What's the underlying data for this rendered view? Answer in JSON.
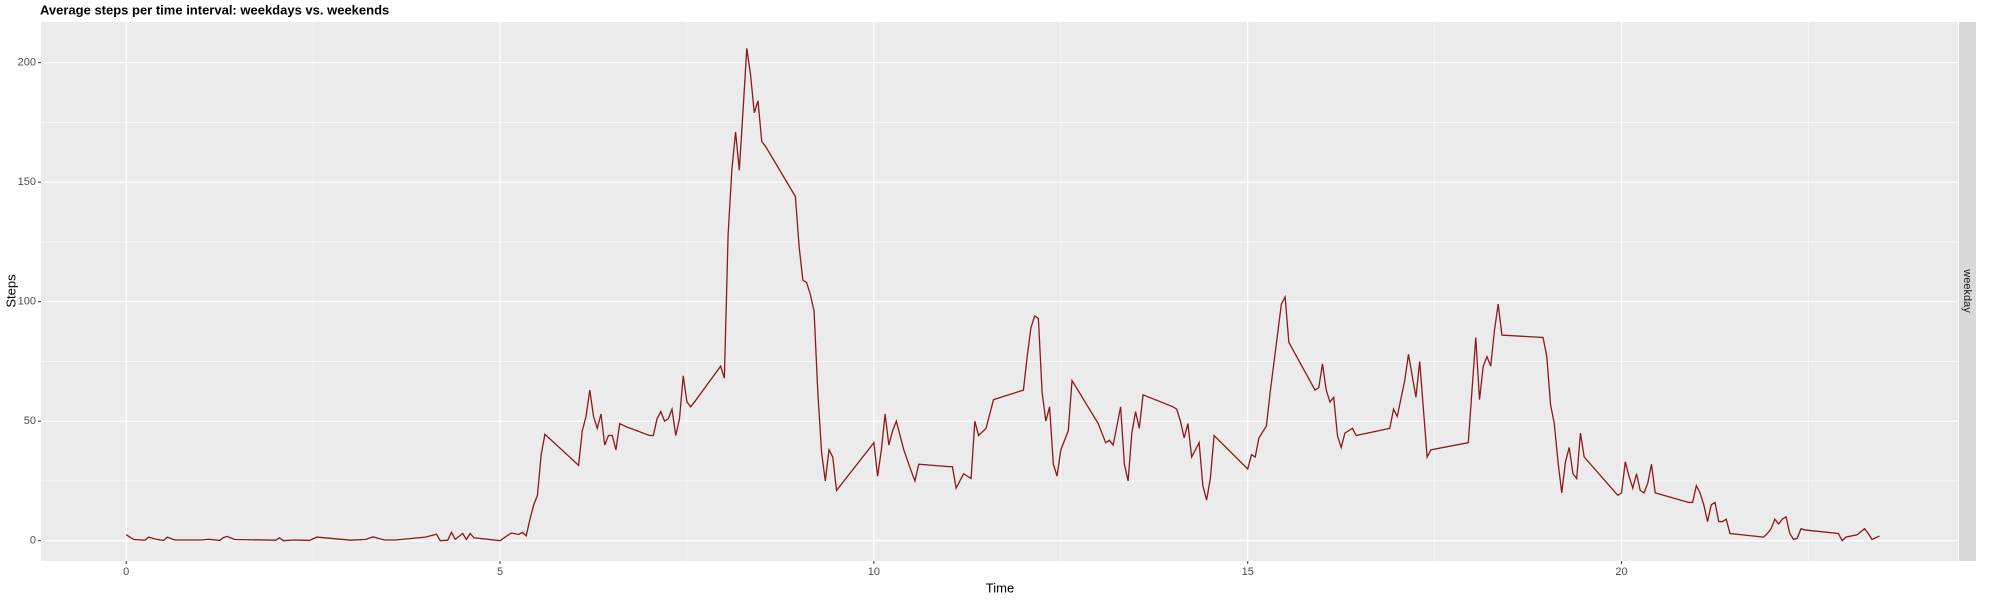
{
  "chart_data": {
    "type": "line",
    "title": "Average steps per time interval: weekdays vs. weekends",
    "x_label": "Time",
    "y_label": "Steps",
    "facet_label": "weekday",
    "color": "#8b1a1a",
    "xlim": [
      -1.14,
      24.5
    ],
    "ylim": [
      -8.5,
      217
    ],
    "xticks": [
      0,
      5,
      10,
      15,
      20
    ],
    "yticks": [
      0,
      50,
      100,
      150,
      200
    ],
    "x_minor_ticks": [
      2.5,
      7.5,
      12.5,
      17.5,
      22.5
    ],
    "y_minor_ticks": [
      25,
      75,
      125,
      175
    ],
    "grid": true,
    "x": [
      0,
      0.1,
      0.25,
      0.3,
      0.4,
      0.5,
      0.55,
      0.65,
      1.0,
      1.1,
      1.25,
      1.3,
      1.35,
      1.45,
      2.0,
      2.05,
      2.1,
      2.25,
      2.35,
      2.45,
      2.55,
      3.0,
      3.2,
      3.3,
      3.45,
      3.6,
      4.0,
      4.15,
      4.2,
      4.3,
      4.35,
      4.4,
      4.45,
      4.5,
      4.55,
      4.6,
      4.65,
      5.0,
      5.1,
      5.15,
      5.25,
      5.3,
      5.35,
      5.4,
      5.45,
      5.5,
      5.55,
      5.6,
      6.0,
      6.05,
      6.1,
      6.15,
      6.2,
      6.25,
      6.3,
      6.35,
      6.4,
      6.45,
      6.5,
      6.55,
      6.6,
      6.7,
      7.0,
      7.05,
      7.1,
      7.15,
      7.2,
      7.25,
      7.3,
      7.35,
      7.4,
      7.45,
      7.5,
      7.55,
      7.6,
      7.95,
      8.0,
      8.05,
      8.1,
      8.15,
      8.2,
      8.25,
      8.3,
      8.35,
      8.4,
      8.45,
      8.5,
      8.55,
      8.95,
      9.0,
      9.05,
      9.1,
      9.15,
      9.2,
      9.25,
      9.3,
      9.35,
      9.4,
      9.45,
      9.5,
      10.0,
      10.05,
      10.1,
      10.15,
      10.2,
      10.25,
      10.3,
      10.35,
      10.4,
      10.5,
      10.55,
      10.6,
      11.0,
      11.05,
      11.1,
      11.2,
      11.3,
      11.35,
      11.4,
      11.5,
      11.6,
      12.0,
      12.05,
      12.1,
      12.15,
      12.2,
      12.25,
      12.3,
      12.35,
      12.4,
      12.45,
      12.5,
      12.6,
      12.65,
      13.0,
      13.1,
      13.15,
      13.2,
      13.3,
      13.35,
      13.4,
      13.45,
      13.5,
      13.55,
      13.6,
      14.0,
      14.05,
      14.1,
      14.15,
      14.2,
      14.25,
      14.35,
      14.4,
      14.45,
      14.5,
      14.55,
      15.0,
      15.05,
      15.1,
      15.15,
      15.25,
      15.3,
      15.45,
      15.5,
      15.55,
      15.9,
      15.95,
      16.0,
      16.05,
      16.1,
      16.15,
      16.2,
      16.25,
      16.3,
      16.4,
      16.45,
      16.9,
      16.95,
      17.0,
      17.1,
      17.15,
      17.25,
      17.3,
      17.4,
      17.45,
      17.95,
      18.0,
      18.05,
      18.1,
      18.15,
      18.2,
      18.25,
      18.3,
      18.35,
      18.4,
      18.95,
      19.0,
      19.05,
      19.1,
      19.15,
      19.2,
      19.25,
      19.3,
      19.35,
      19.4,
      19.45,
      19.5,
      19.95,
      20.0,
      20.05,
      20.1,
      20.15,
      20.2,
      20.25,
      20.3,
      20.35,
      20.4,
      20.45,
      20.9,
      20.95,
      21.0,
      21.05,
      21.1,
      21.15,
      21.2,
      21.25,
      21.3,
      21.35,
      21.4,
      21.45,
      21.9,
      21.95,
      22.0,
      22.05,
      22.1,
      22.15,
      22.2,
      22.25,
      22.3,
      22.35,
      22.4,
      22.45,
      22.9,
      22.95,
      23.0,
      23.15,
      23.25,
      23.3,
      23.35,
      23.45
    ],
    "values": [
      2.5,
      0.5,
      0.2,
      1.5,
      0.6,
      0.1,
      1.5,
      0.3,
      0.3,
      0.6,
      0.1,
      1.3,
      1.8,
      0.5,
      0.2,
      1.2,
      0,
      0.3,
      0.2,
      0.1,
      1.5,
      0.2,
      0.5,
      1.6,
      0.3,
      0.3,
      1.5,
      2.7,
      0,
      0.2,
      3.5,
      0.6,
      1.8,
      3,
      0.5,
      3,
      1.2,
      0,
      2.2,
      3.2,
      2.6,
      3.5,
      2,
      9,
      15,
      19,
      36,
      44.5,
      33,
      31.5,
      46,
      52,
      63,
      52,
      47,
      53,
      40,
      44,
      44,
      38,
      49,
      47.5,
      44,
      44,
      51,
      54,
      50,
      51,
      55,
      44,
      51,
      69,
      58,
      56,
      58,
      73,
      68,
      128,
      155,
      171,
      155,
      180,
      206,
      195,
      179,
      184,
      167,
      165,
      144,
      123,
      109,
      108,
      103,
      96,
      62,
      37,
      25,
      38,
      35,
      21,
      41,
      27,
      38,
      53,
      40,
      46,
      50,
      44,
      38,
      29,
      25,
      32,
      31,
      31,
      22,
      28,
      26,
      50,
      44,
      47,
      59,
      63,
      77,
      89,
      94,
      93,
      62,
      50,
      56,
      32,
      27,
      38,
      46,
      67,
      49,
      41,
      42,
      40,
      56,
      32,
      25,
      45,
      54,
      47,
      61,
      56,
      55,
      50,
      43,
      49,
      35,
      41,
      23,
      17,
      26,
      44,
      30,
      36,
      35,
      43,
      48,
      62,
      99,
      102,
      83,
      63,
      64,
      74,
      63,
      58,
      60,
      44,
      39,
      45,
      47,
      44,
      47,
      55,
      52,
      67,
      78,
      60,
      75,
      35,
      38,
      41,
      63,
      85,
      59,
      73,
      77,
      73,
      88,
      99,
      86,
      85,
      77,
      57,
      49,
      33,
      20,
      33,
      39,
      28,
      26,
      45,
      35,
      19,
      20,
      33,
      27,
      22,
      28,
      21,
      20,
      24,
      32,
      20,
      16,
      16,
      23,
      20,
      15,
      8,
      15,
      16,
      8,
      8,
      9,
      3,
      1.5,
      3,
      5,
      9,
      7,
      9,
      10,
      3,
      0.5,
      1,
      5,
      4.5,
      3,
      0,
      1.5,
      2.5,
      5,
      3,
      0.5,
      2
    ]
  }
}
